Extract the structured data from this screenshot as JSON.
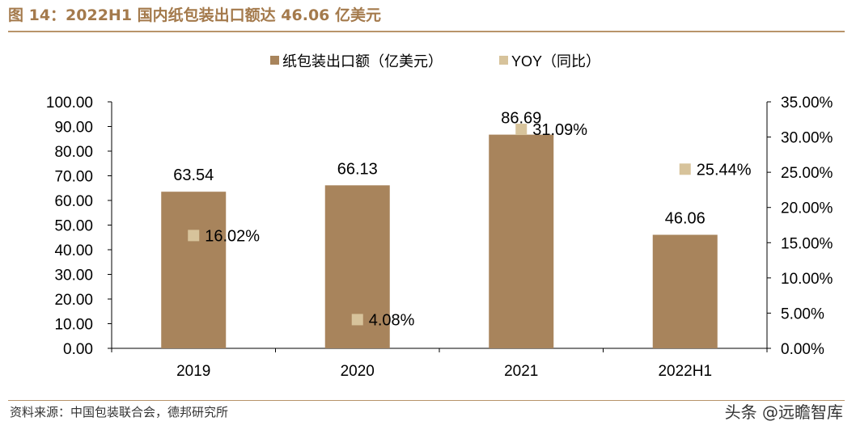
{
  "header": {
    "title": "图 14：2022H1 国内纸包装出口额达 46.06 亿美元"
  },
  "footer": {
    "source": "资料来源：中国包装联合会，德邦研究所",
    "watermark": "头条 @远瞻智库"
  },
  "colors": {
    "bar": "#a8845c",
    "yoy": "#d7c39b",
    "title": "#a47a4c"
  },
  "chart_data": {
    "type": "bar",
    "categories": [
      "2019",
      "2020",
      "2021",
      "2022H1"
    ],
    "series": [
      {
        "name": "纸包装出口额（亿美元）",
        "type": "bar",
        "axis": "left",
        "values": [
          63.54,
          66.13,
          86.69,
          46.06
        ],
        "labels": [
          "63.54",
          "66.13",
          "86.69",
          "46.06"
        ]
      },
      {
        "name": "YOY（同比）",
        "type": "scatter",
        "axis": "right",
        "values": [
          16.02,
          4.08,
          31.09,
          25.44
        ],
        "labels": [
          "16.02%",
          "4.08%",
          "31.09%",
          "25.44%"
        ]
      }
    ],
    "y_left": {
      "range": [
        0,
        100
      ],
      "ticks": [
        "0.00",
        "10.00",
        "20.00",
        "30.00",
        "40.00",
        "50.00",
        "60.00",
        "70.00",
        "80.00",
        "90.00",
        "100.00"
      ]
    },
    "y_right": {
      "range": [
        0,
        35
      ],
      "ticks": [
        "0.00%",
        "5.00%",
        "10.00%",
        "15.00%",
        "20.00%",
        "25.00%",
        "30.00%",
        "35.00%"
      ]
    },
    "legend_position": "top-center",
    "grid": false
  }
}
